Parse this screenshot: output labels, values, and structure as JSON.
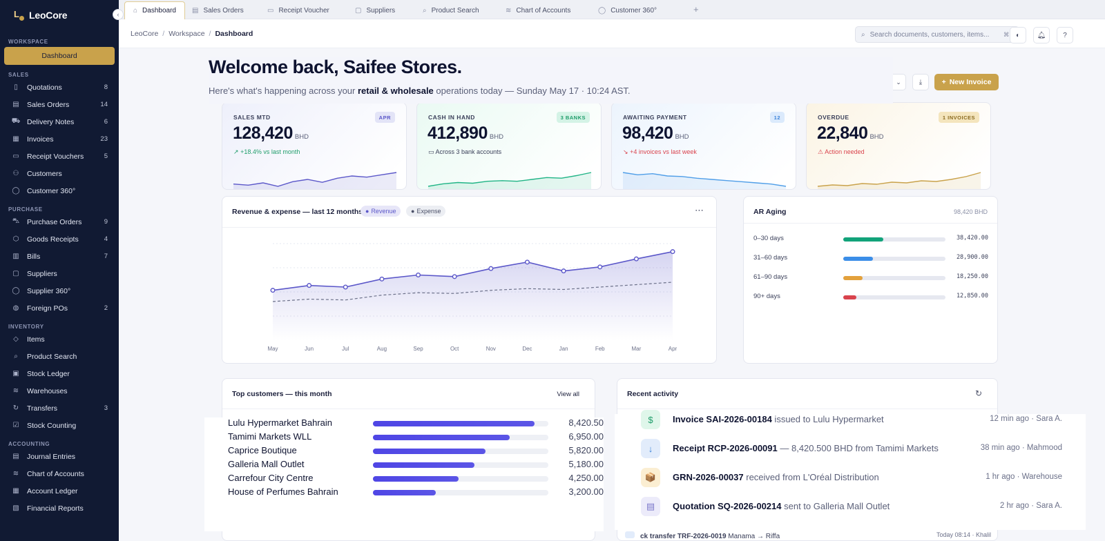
{
  "brand": {
    "name": "LeoCore",
    "mark": "L"
  },
  "sidebar": {
    "active": "Dashboard",
    "sections": [
      {
        "title": "WORKSPACE",
        "items": []
      },
      {
        "title": "SALES",
        "items": [
          {
            "label": "Quotations",
            "icon": "document-icon",
            "count": "8"
          },
          {
            "label": "Sales Orders",
            "icon": "clipboard-icon",
            "count": "14"
          },
          {
            "label": "Delivery Notes",
            "icon": "truck-icon",
            "count": "6"
          },
          {
            "label": "Invoices",
            "icon": "invoice-icon",
            "count": "23"
          },
          {
            "label": "Receipt Vouchers",
            "icon": "receipt-icon",
            "count": "5"
          },
          {
            "label": "Customers",
            "icon": "users-icon",
            "count": ""
          },
          {
            "label": "Customer 360°",
            "icon": "user-icon",
            "count": ""
          }
        ]
      },
      {
        "title": "PURCHASE",
        "items": [
          {
            "label": "Purchase Orders",
            "icon": "cart-icon",
            "count": "9"
          },
          {
            "label": "Goods Receipts",
            "icon": "box-icon",
            "count": "4"
          },
          {
            "label": "Bills",
            "icon": "bill-icon",
            "count": "7"
          },
          {
            "label": "Suppliers",
            "icon": "building-icon",
            "count": ""
          },
          {
            "label": "Supplier 360°",
            "icon": "user-icon",
            "count": ""
          },
          {
            "label": "Foreign POs",
            "icon": "globe-icon",
            "count": "2"
          }
        ]
      },
      {
        "title": "INVENTORY",
        "items": [
          {
            "label": "Items",
            "icon": "tag-icon",
            "count": ""
          },
          {
            "label": "Product Search",
            "icon": "search-icon",
            "count": ""
          },
          {
            "label": "Stock Ledger",
            "icon": "book-icon",
            "count": ""
          },
          {
            "label": "Warehouses",
            "icon": "layers-icon",
            "count": ""
          },
          {
            "label": "Transfers",
            "icon": "refresh-icon",
            "count": "3"
          },
          {
            "label": "Stock Counting",
            "icon": "checkbox-icon",
            "count": ""
          }
        ]
      },
      {
        "title": "ACCOUNTING",
        "items": [
          {
            "label": "Journal Entries",
            "icon": "journal-icon",
            "count": ""
          },
          {
            "label": "Chart of Accounts",
            "icon": "layers-icon",
            "count": ""
          },
          {
            "label": "Account Ledger",
            "icon": "ledger-icon",
            "count": ""
          },
          {
            "label": "Financial Reports",
            "icon": "report-icon",
            "count": ""
          }
        ]
      }
    ]
  },
  "tabs": [
    {
      "label": "Dashboard",
      "icon": "home-icon",
      "active": true
    },
    {
      "label": "Sales Orders",
      "icon": "clipboard-icon"
    },
    {
      "label": "Receipt Voucher",
      "icon": "receipt-icon"
    },
    {
      "label": "Suppliers",
      "icon": "building-icon"
    },
    {
      "label": "Product Search",
      "icon": "search-icon"
    },
    {
      "label": "Chart of Accounts",
      "icon": "layers-icon"
    },
    {
      "label": "Customer 360°",
      "icon": "user-icon"
    }
  ],
  "header": {
    "breadcrumb": [
      "LeoCore",
      "Workspace",
      "Dashboard"
    ],
    "search_placeholder": "Search documents, customers, items...",
    "search_shortcut": "⌘K"
  },
  "welcome": {
    "title": "Welcome back, Saifee Stores.",
    "subtitle_pre": "Here's what's happening across your ",
    "subtitle_bold": "retail & wholesale",
    "subtitle_post": " operations today — Sunday May 17 · 10:24 AST."
  },
  "actions": {
    "new_invoice": "New Invoice"
  },
  "kpis": [
    {
      "label": "SALES MTD",
      "badge": "APR",
      "value": "128,420",
      "unit": "BHD",
      "sub": "+18.4% vs last month",
      "sub_icon": "trend-up-icon",
      "sub_color": "#1f9d6a",
      "accent": "#5b57c9",
      "bg": "#eef0fb",
      "badge_bg": "#e3e4f7",
      "badge_fg": "#5b57c9",
      "spark": [
        40,
        38,
        42,
        36,
        44,
        48,
        43,
        50,
        54,
        52,
        56,
        60
      ]
    },
    {
      "label": "CASH IN HAND",
      "badge": "3 BANKS",
      "value": "412,890",
      "unit": "BHD",
      "sub": "Across 3 bank accounts",
      "sub_icon": "bank-icon",
      "sub_color": "#3b405a",
      "accent": "#20b486",
      "bg": "#eafaf3",
      "badge_bg": "#d4f3e6",
      "badge_fg": "#1f9d6a",
      "spark": [
        36,
        40,
        42,
        41,
        44,
        45,
        44,
        47,
        50,
        49,
        53,
        58
      ]
    },
    {
      "label": "AWAITING PAYMENT",
      "badge": "12",
      "value": "98,420",
      "unit": "BHD",
      "sub": "+4 invoices vs last week",
      "sub_icon": "trend-down-icon",
      "sub_color": "#d9434d",
      "accent": "#4f9ee8",
      "bg": "#ecf4fd",
      "badge_bg": "#dbeafc",
      "badge_fg": "#3a82d9",
      "spark": [
        60,
        56,
        58,
        54,
        53,
        50,
        48,
        46,
        44,
        42,
        40,
        36
      ]
    },
    {
      "label": "OVERDUE",
      "badge": "1 INVOICES",
      "value": "22,840",
      "unit": "BHD",
      "sub": "Action needed",
      "sub_icon": "warning-icon",
      "sub_color": "#d9434d",
      "accent": "#c9a24b",
      "bg": "#fbf4e4",
      "badge_bg": "#f4e5bd",
      "badge_fg": "#8a6a1f",
      "spark": [
        38,
        40,
        39,
        42,
        41,
        44,
        43,
        46,
        45,
        48,
        52,
        58
      ]
    }
  ],
  "revenue_panel": {
    "title": "Revenue & expense — last 12 months",
    "legend": [
      "Revenue",
      "Expense"
    ]
  },
  "chart_data": {
    "type": "line",
    "categories": [
      "May",
      "Jun",
      "Jul",
      "Aug",
      "Sep",
      "Oct",
      "Nov",
      "Dec",
      "Jan",
      "Feb",
      "Mar",
      "Apr"
    ],
    "series": [
      {
        "name": "Revenue",
        "values": [
          62,
          68,
          66,
          76,
          81,
          79,
          89,
          97,
          86,
          91,
          101,
          110
        ]
      },
      {
        "name": "Expense",
        "values": [
          48,
          51,
          50,
          56,
          59,
          58,
          62,
          64,
          63,
          66,
          69,
          72
        ]
      }
    ],
    "ylim": [
      0,
      120
    ],
    "grid": true,
    "colors": {
      "Revenue": "#5b57c9",
      "Expense": "#6b7089"
    }
  },
  "aging": {
    "title": "AR Aging",
    "total": "98,420 BHD",
    "rows": [
      {
        "label": "0–30 days",
        "amount": "38,420.00",
        "fill": 0.39,
        "color": "#12a37a"
      },
      {
        "label": "31–60 days",
        "amount": "28,900.00",
        "fill": 0.29,
        "color": "#3b8ee8"
      },
      {
        "label": "61–90 days",
        "amount": "18,250.00",
        "fill": 0.19,
        "color": "#e3a13c"
      },
      {
        "label": "90+ days",
        "amount": "12,850.00",
        "fill": 0.13,
        "color": "#d9434d"
      }
    ]
  },
  "top_customers": {
    "title": "Top customers — this month",
    "view_all": "View all",
    "rows": [
      {
        "name": "Lulu Hypermarket Bahrain",
        "value": "8,420.50",
        "fill": 0.92
      },
      {
        "name": "Tamimi Markets WLL",
        "value": "6,950.00",
        "fill": 0.78
      },
      {
        "name": "Caprice Boutique",
        "value": "5,820.00",
        "fill": 0.64
      },
      {
        "name": "Galleria Mall Outlet",
        "value": "5,180.00",
        "fill": 0.58
      },
      {
        "name": "Carrefour City Centre",
        "value": "4,250.00",
        "fill": 0.49
      },
      {
        "name": "House of Perfumes Bahrain",
        "value": "3,200.00",
        "fill": 0.36
      }
    ]
  },
  "recent_activity": {
    "title": "Recent activity",
    "rows": [
      {
        "icon": "dollar-icon",
        "glyph": "$",
        "bg": "#dff6ea",
        "fg": "#1f9d6a",
        "doc": "Invoice SAI-2026-00184",
        "rest": " issued to Lulu Hypermarket",
        "time": "12 min ago · Sara A."
      },
      {
        "icon": "arrow-down-icon",
        "glyph": "↓",
        "bg": "#e2ecfb",
        "fg": "#3a82d9",
        "doc": "Receipt RCP-2026-00091",
        "rest": " — 8,420.500 BHD from Tamimi Markets",
        "time": "38 min ago · Mahmood"
      },
      {
        "icon": "package-icon",
        "glyph": "📦",
        "bg": "#fbeed2",
        "fg": "#a06d14",
        "doc": "GRN-2026-00037",
        "rest": " received from L'Oréal Distribution",
        "time": "1 hr ago · Warehouse"
      },
      {
        "icon": "document-icon",
        "glyph": "▤",
        "bg": "#ecebfa",
        "fg": "#7b77c9",
        "doc": "Quotation SQ-2026-00214",
        "rest": " sent to Galleria Mall Outlet",
        "time": "2 hr ago · Sara A."
      }
    ],
    "peek": {
      "doc": "ck transfer TRF-2026-0019",
      "rest": " Manama → Riffa",
      "time": "Today 08:14 · Khalil"
    }
  }
}
